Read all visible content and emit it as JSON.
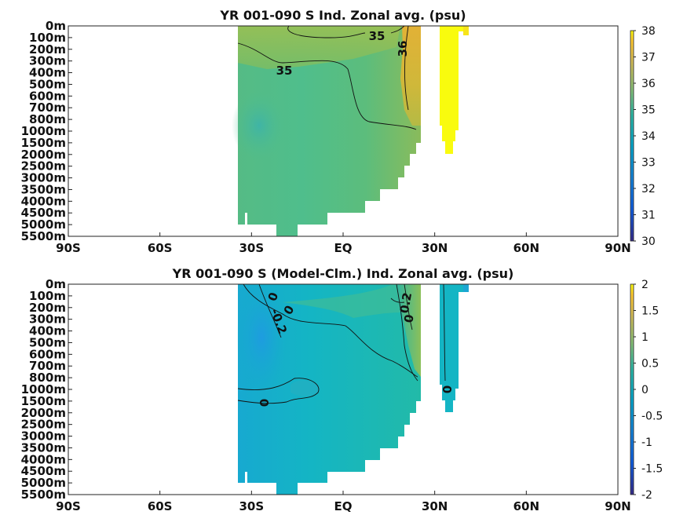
{
  "chart_data": [
    {
      "type": "heatmap",
      "title": "YR 001-090 S Ind. Zonal avg. (psu)",
      "x_ticks": [
        "90S",
        "60S",
        "30S",
        "EQ",
        "30N",
        "60N",
        "90N"
      ],
      "y_ticks": [
        "0m",
        "100m",
        "200m",
        "300m",
        "400m",
        "500m",
        "600m",
        "700m",
        "800m",
        "1000m",
        "1500m",
        "2000m",
        "2500m",
        "3000m",
        "3500m",
        "4000m",
        "4500m",
        "5000m",
        "5500m"
      ],
      "colorbar": {
        "min": 30,
        "max": 38,
        "ticks": [
          "30",
          "31",
          "32",
          "33",
          "34",
          "35",
          "36",
          "37",
          "38"
        ]
      },
      "contour_labels": [
        "35",
        "35",
        "36"
      ],
      "colors": {
        "low": "#352a87",
        "mid": "#38b99e",
        "high": "#f9fb0e"
      },
      "description_values": {
        "interior_salinity": 34.7,
        "red_sea_outflow": 36.5,
        "persian_gulf": 38
      }
    },
    {
      "type": "heatmap",
      "title": "YR 001-090 S (Model-Clm.) Ind. Zonal avg. (psu)",
      "x_ticks": [
        "90S",
        "60S",
        "30S",
        "EQ",
        "30N",
        "60N",
        "90N"
      ],
      "y_ticks": [
        "0m",
        "100m",
        "200m",
        "300m",
        "400m",
        "500m",
        "600m",
        "700m",
        "800m",
        "1000m",
        "1500m",
        "2000m",
        "2500m",
        "3000m",
        "3500m",
        "4000m",
        "4500m",
        "5000m",
        "5500m"
      ],
      "colorbar": {
        "min": -2,
        "max": 2,
        "ticks": [
          "-2",
          "-1.5",
          "-1",
          "-0.5",
          "0",
          "0.5",
          "1",
          "1.5",
          "2"
        ]
      },
      "contour_labels": [
        "0",
        "0",
        "-0.2",
        "0.2",
        "0",
        "0",
        "0"
      ],
      "colors": {
        "low": "#352a87",
        "mid": "#14aec8",
        "high": "#f9fb0e"
      }
    }
  ]
}
